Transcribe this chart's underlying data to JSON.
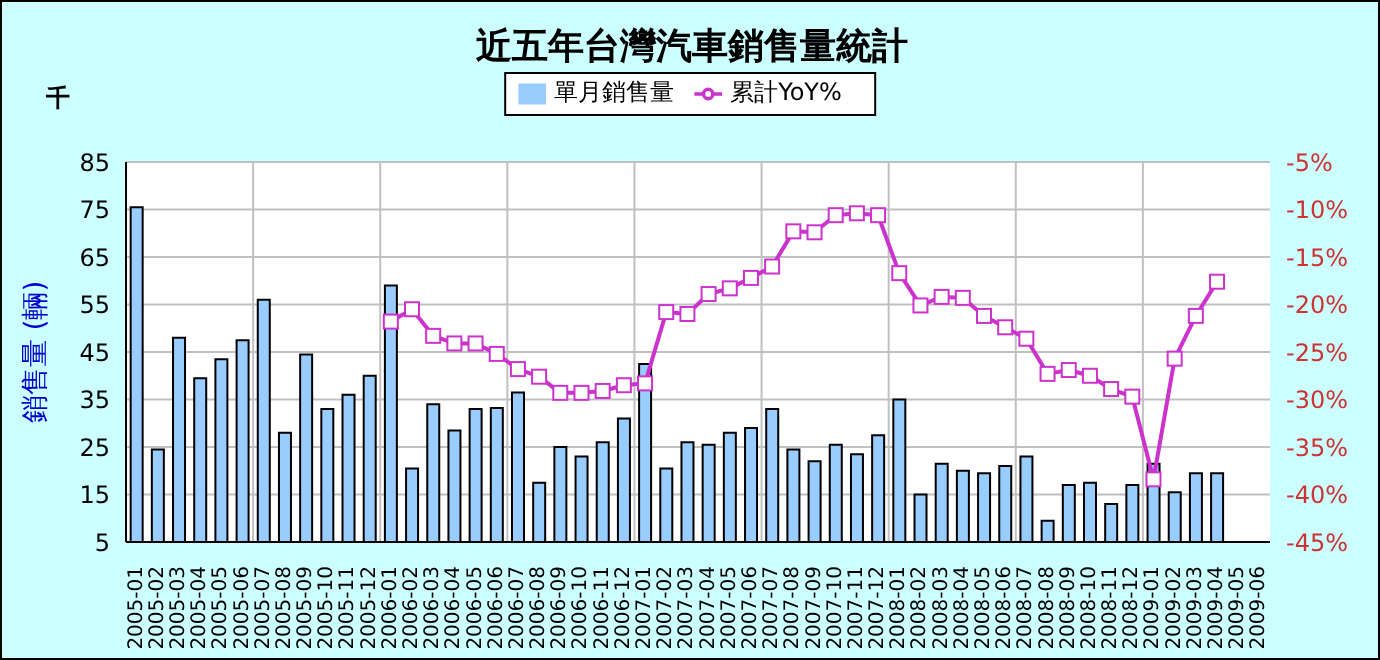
{
  "chart_data": {
    "type": "bar",
    "title": "近五年台灣汽車銷售量統計",
    "ylabel": "銷售量 (輛)",
    "annotations": [
      "千"
    ],
    "categories": [
      "2005-01",
      "2005-02",
      "2005-03",
      "2005-04",
      "2005-05",
      "2005-06",
      "2005-07",
      "2005-08",
      "2005-09",
      "2005-10",
      "2005-11",
      "2005-12",
      "2006-01",
      "2006-02",
      "2006-03",
      "2006-04",
      "2006-05",
      "2006-06",
      "2006-07",
      "2006-08",
      "2006-09",
      "2006-10",
      "2006-11",
      "2006-12",
      "2007-01",
      "2007-02",
      "2007-03",
      "2007-04",
      "2007-05",
      "2007-06",
      "2007-07",
      "2007-08",
      "2007-09",
      "2007-10",
      "2007-11",
      "2007-12",
      "2008-01",
      "2008-02",
      "2008-03",
      "2008-04",
      "2008-05",
      "2008-06",
      "2008-07",
      "2008-08",
      "2008-09",
      "2008-10",
      "2008-11",
      "2008-12",
      "2009-01",
      "2009-02",
      "2009-03",
      "2009-04",
      "2009-05",
      "2009-06"
    ],
    "series": [
      {
        "name": "單月銷售量",
        "color": "#99ccff",
        "values": [
          75.5,
          24.5,
          48,
          39.5,
          43.5,
          47.5,
          56,
          28,
          44.5,
          33,
          36,
          40,
          59,
          20.5,
          34,
          28.5,
          33,
          33.2,
          36.5,
          17.5,
          25,
          23,
          26,
          31,
          42.5,
          20.5,
          26,
          25.5,
          28,
          29,
          33,
          24.5,
          22,
          25.5,
          23.5,
          27.5,
          35,
          15,
          21.5,
          20,
          19.5,
          21,
          23,
          9.5,
          17,
          17.5,
          13,
          17,
          21.5,
          15.5,
          19.5,
          19.5,
          null,
          null
        ]
      },
      {
        "name": "累計YoY%",
        "type": "line",
        "axis": "y2",
        "color": "#cc33cc",
        "marker": "square",
        "values": [
          null,
          null,
          null,
          null,
          null,
          null,
          null,
          null,
          null,
          null,
          null,
          null,
          -21.8,
          -20.5,
          -23.3,
          -24.1,
          -24.1,
          -25.2,
          -26.8,
          -27.6,
          -29.3,
          -29.3,
          -29.1,
          -28.5,
          -28.3,
          -20.8,
          -21,
          -18.9,
          -18.3,
          -17.2,
          -16,
          -12.3,
          -12.4,
          -10.6,
          -10.4,
          -10.6,
          -16.7,
          -20.1,
          -19.2,
          -19.3,
          -21.2,
          -22.4,
          -23.6,
          -27.3,
          -26.9,
          -27.5,
          -28.9,
          -29.7,
          -38.4,
          -25.7,
          -21.2,
          -17.6,
          null,
          null
        ]
      }
    ],
    "ylim": [
      5,
      85
    ],
    "yticks": [
      5,
      15,
      25,
      35,
      45,
      55,
      65,
      75,
      85
    ],
    "y2lim": [
      -45,
      -5
    ],
    "y2ticks": [
      {
        "value": -45,
        "label": "-45%"
      },
      {
        "value": -40,
        "label": "-40%"
      },
      {
        "value": -35,
        "label": "-35%"
      },
      {
        "value": -30,
        "label": "-30%"
      },
      {
        "value": -25,
        "label": "-25%"
      },
      {
        "value": -20,
        "label": "-20%"
      },
      {
        "value": -15,
        "label": "-15%"
      },
      {
        "value": -10,
        "label": "-10%"
      },
      {
        "value": -5,
        "label": "-5%"
      }
    ],
    "grid": true,
    "legend": "top"
  }
}
